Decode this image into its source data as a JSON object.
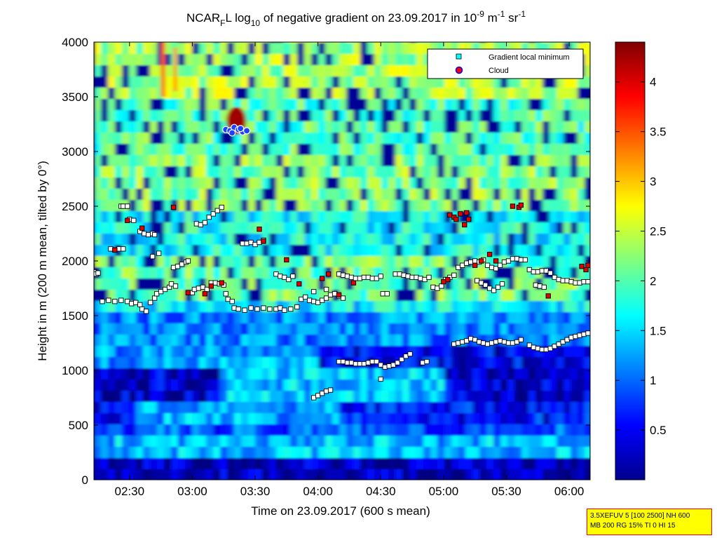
{
  "chart_data": {
    "type": "heatmap",
    "title": {
      "prefix": "NCAR",
      "prefix_sub": "F",
      "mid1": "L log",
      "log_sub": "10",
      "mid2": " of negative gradient on 23.09.2017 in 10",
      "exp1": "-9",
      "mid3": " m",
      "exp2": "-1",
      "mid4": " sr",
      "exp3": "-1"
    },
    "xlabel": "Time on 23.09.2017 (600 s mean)",
    "ylabel": "Height in m (200 m mean, tilted by 0°)",
    "x_ticks": [
      "02:30",
      "03:00",
      "03:30",
      "04:00",
      "04:30",
      "05:00",
      "05:30",
      "06:00"
    ],
    "x_tick_minutes": [
      150,
      180,
      210,
      240,
      270,
      300,
      330,
      360
    ],
    "xlim_minutes": [
      133,
      370
    ],
    "y_ticks": [
      "0",
      "500",
      "1000",
      "1500",
      "2000",
      "2500",
      "3000",
      "3500",
      "4000"
    ],
    "y_tick_values": [
      0,
      500,
      1000,
      1500,
      2000,
      2500,
      3000,
      3500,
      4000
    ],
    "ylim": [
      0,
      4000
    ],
    "colorbar": {
      "ticks": [
        "0.5",
        "1",
        "1.5",
        "2",
        "2.5",
        "3",
        "3.5",
        "4"
      ],
      "tick_values": [
        0.5,
        1,
        1.5,
        2,
        2.5,
        3,
        3.5,
        4
      ],
      "range": [
        0,
        4.4
      ],
      "colormap": "jet"
    },
    "legend": {
      "position": "top-right",
      "entries": [
        {
          "label": "Gradient local minimum",
          "color": "#00ffff"
        },
        {
          "label": "Cloud",
          "color": "#ff0000"
        }
      ]
    },
    "series": [
      {
        "name": "Gradient local minimum",
        "points": [
          [
            133,
            1900
          ],
          [
            134,
            1880
          ],
          [
            135,
            1890
          ],
          [
            137,
            1630
          ],
          [
            140,
            1640
          ],
          [
            143,
            1630
          ],
          [
            146,
            1640
          ],
          [
            149,
            1630
          ],
          [
            151,
            1610
          ],
          [
            153,
            1620
          ],
          [
            155,
            1600
          ],
          [
            156,
            1560
          ],
          [
            158,
            1540
          ],
          [
            160,
            1620
          ],
          [
            162,
            1660
          ],
          [
            163,
            1700
          ],
          [
            165,
            1720
          ],
          [
            167,
            1740
          ],
          [
            169,
            1760
          ],
          [
            170,
            1790
          ],
          [
            172,
            1770
          ],
          [
            141,
            2110
          ],
          [
            143,
            2100
          ],
          [
            145,
            2110
          ],
          [
            147,
            2110
          ],
          [
            150,
            2380
          ],
          [
            152,
            2370
          ],
          [
            155,
            2270
          ],
          [
            157,
            2250
          ],
          [
            159,
            2240
          ],
          [
            161,
            2250
          ],
          [
            162,
            2240
          ],
          [
            161,
            2040
          ],
          [
            164,
            2070
          ],
          [
            171,
            1940
          ],
          [
            173,
            1950
          ],
          [
            175,
            1970
          ],
          [
            177,
            1990
          ],
          [
            178,
            2000
          ],
          [
            146,
            2500
          ],
          [
            147,
            2500
          ],
          [
            149,
            2500
          ],
          [
            180,
            1710
          ],
          [
            181,
            1740
          ],
          [
            183,
            1750
          ],
          [
            185,
            1760
          ],
          [
            187,
            1740
          ],
          [
            189,
            1800
          ],
          [
            191,
            1800
          ],
          [
            193,
            1790
          ],
          [
            195,
            1780
          ],
          [
            196,
            1700
          ],
          [
            197,
            1650
          ],
          [
            199,
            1630
          ],
          [
            200,
            1570
          ],
          [
            202,
            1560
          ],
          [
            205,
            1550
          ],
          [
            208,
            1570
          ],
          [
            211,
            1560
          ],
          [
            214,
            1570
          ],
          [
            217,
            1560
          ],
          [
            220,
            1560
          ],
          [
            222,
            1570
          ],
          [
            224,
            1550
          ],
          [
            227,
            1560
          ],
          [
            230,
            1580
          ],
          [
            182,
            2340
          ],
          [
            184,
            2330
          ],
          [
            186,
            2350
          ],
          [
            188,
            2400
          ],
          [
            190,
            2430
          ],
          [
            192,
            2460
          ],
          [
            194,
            2490
          ],
          [
            204,
            2160
          ],
          [
            206,
            2160
          ],
          [
            208,
            2170
          ],
          [
            210,
            2150
          ],
          [
            212,
            2170
          ],
          [
            214,
            2190
          ],
          [
            220,
            1880
          ],
          [
            222,
            1860
          ],
          [
            224,
            1850
          ],
          [
            226,
            1830
          ],
          [
            228,
            1860
          ],
          [
            232,
            1650
          ],
          [
            234,
            1670
          ],
          [
            236,
            1640
          ],
          [
            238,
            1630
          ],
          [
            240,
            1620
          ],
          [
            242,
            1640
          ],
          [
            244,
            1660
          ],
          [
            246,
            1690
          ],
          [
            248,
            1700
          ],
          [
            250,
            1680
          ],
          [
            252,
            1660
          ],
          [
            238,
            1720
          ],
          [
            244,
            1740
          ],
          [
            250,
            1880
          ],
          [
            252,
            1870
          ],
          [
            254,
            1860
          ],
          [
            256,
            1850
          ],
          [
            258,
            1840
          ],
          [
            260,
            1840
          ],
          [
            262,
            1850
          ],
          [
            264,
            1850
          ],
          [
            266,
            1840
          ],
          [
            268,
            1840
          ],
          [
            270,
            1860
          ],
          [
            271,
            1700
          ],
          [
            273,
            1700
          ],
          [
            277,
            1880
          ],
          [
            279,
            1880
          ],
          [
            281,
            1870
          ],
          [
            283,
            1860
          ],
          [
            285,
            1850
          ],
          [
            287,
            1850
          ],
          [
            289,
            1840
          ],
          [
            291,
            1830
          ],
          [
            293,
            1850
          ],
          [
            295,
            1760
          ],
          [
            297,
            1750
          ],
          [
            299,
            1770
          ],
          [
            301,
            1830
          ],
          [
            303,
            1850
          ],
          [
            305,
            1870
          ],
          [
            307,
            1940
          ],
          [
            309,
            1960
          ],
          [
            311,
            1980
          ],
          [
            313,
            1990
          ],
          [
            315,
            2000
          ],
          [
            317,
            1990
          ],
          [
            319,
            2010
          ],
          [
            321,
            1960
          ],
          [
            323,
            1940
          ],
          [
            325,
            1930
          ],
          [
            327,
            1960
          ],
          [
            329,
            1990
          ],
          [
            331,
            2000
          ],
          [
            333,
            2020
          ],
          [
            335,
            2020
          ],
          [
            337,
            2010
          ],
          [
            339,
            2010
          ],
          [
            316,
            1820
          ],
          [
            318,
            1800
          ],
          [
            320,
            1780
          ],
          [
            322,
            1750
          ],
          [
            324,
            1730
          ],
          [
            326,
            1760
          ],
          [
            328,
            1790
          ],
          [
            341,
            1920
          ],
          [
            343,
            1900
          ],
          [
            345,
            1900
          ],
          [
            347,
            1910
          ],
          [
            349,
            1910
          ],
          [
            351,
            1890
          ],
          [
            353,
            1850
          ],
          [
            355,
            1830
          ],
          [
            357,
            1820
          ],
          [
            359,
            1820
          ],
          [
            361,
            1810
          ],
          [
            363,
            1800
          ],
          [
            365,
            1800
          ],
          [
            367,
            1810
          ],
          [
            369,
            1810
          ],
          [
            344,
            1780
          ],
          [
            346,
            1770
          ],
          [
            348,
            1760
          ],
          [
            250,
            1080
          ],
          [
            252,
            1080
          ],
          [
            254,
            1070
          ],
          [
            256,
            1070
          ],
          [
            258,
            1060
          ],
          [
            260,
            1060
          ],
          [
            262,
            1060
          ],
          [
            264,
            1070
          ],
          [
            266,
            1080
          ],
          [
            268,
            1080
          ],
          [
            270,
            1050
          ],
          [
            272,
            1030
          ],
          [
            274,
            1040
          ],
          [
            276,
            1050
          ],
          [
            278,
            1070
          ],
          [
            280,
            1100
          ],
          [
            282,
            1130
          ],
          [
            284,
            1150
          ],
          [
            290,
            1070
          ],
          [
            292,
            1080
          ],
          [
            270,
            920
          ],
          [
            305,
            1240
          ],
          [
            307,
            1250
          ],
          [
            309,
            1260
          ],
          [
            311,
            1270
          ],
          [
            313,
            1290
          ],
          [
            315,
            1280
          ],
          [
            317,
            1260
          ],
          [
            319,
            1250
          ],
          [
            321,
            1240
          ],
          [
            323,
            1250
          ],
          [
            325,
            1260
          ],
          [
            327,
            1270
          ],
          [
            329,
            1260
          ],
          [
            331,
            1250
          ],
          [
            333,
            1250
          ],
          [
            335,
            1260
          ],
          [
            337,
            1280
          ],
          [
            341,
            1230
          ],
          [
            343,
            1210
          ],
          [
            345,
            1200
          ],
          [
            347,
            1190
          ],
          [
            349,
            1190
          ],
          [
            351,
            1200
          ],
          [
            353,
            1220
          ],
          [
            355,
            1240
          ],
          [
            357,
            1260
          ],
          [
            359,
            1280
          ],
          [
            361,
            1300
          ],
          [
            363,
            1310
          ],
          [
            365,
            1320
          ],
          [
            367,
            1330
          ],
          [
            369,
            1340
          ],
          [
            238,
            750
          ],
          [
            240,
            770
          ],
          [
            242,
            790
          ],
          [
            244,
            810
          ],
          [
            246,
            820
          ]
        ]
      },
      {
        "name": "Cloud",
        "points": [
          [
            132,
            1950
          ],
          [
            143,
            2100
          ],
          [
            149,
            2370
          ],
          [
            156,
            2300
          ],
          [
            171,
            2490
          ],
          [
            178,
            1710
          ],
          [
            186,
            1700
          ],
          [
            189,
            1770
          ],
          [
            194,
            1800
          ],
          [
            212,
            2290
          ],
          [
            214,
            2180
          ],
          [
            225,
            2010
          ],
          [
            231,
            1790
          ],
          [
            242,
            1840
          ],
          [
            245,
            1880
          ],
          [
            250,
            1690
          ],
          [
            257,
            1800
          ],
          [
            303,
            2420
          ],
          [
            305,
            2400
          ],
          [
            306,
            2380
          ],
          [
            308,
            2430
          ],
          [
            310,
            2330
          ],
          [
            311,
            2440
          ],
          [
            312,
            2380
          ],
          [
            300,
            1810
          ],
          [
            302,
            1830
          ],
          [
            315,
            1960
          ],
          [
            318,
            2000
          ],
          [
            322,
            2060
          ],
          [
            325,
            2000
          ],
          [
            333,
            2500
          ],
          [
            336,
            2490
          ],
          [
            337,
            2510
          ],
          [
            350,
            1680
          ],
          [
            366,
            1950
          ],
          [
            368,
            1920
          ],
          [
            369,
            1960
          ]
        ]
      }
    ]
  },
  "info_box": {
    "line1": "3.5XEFUV 5 [100 2500] NH 600",
    "line2": "MB 200 RG 15% TI 0 HI 15",
    "background": "#ffff00",
    "border": "#ff0000"
  }
}
